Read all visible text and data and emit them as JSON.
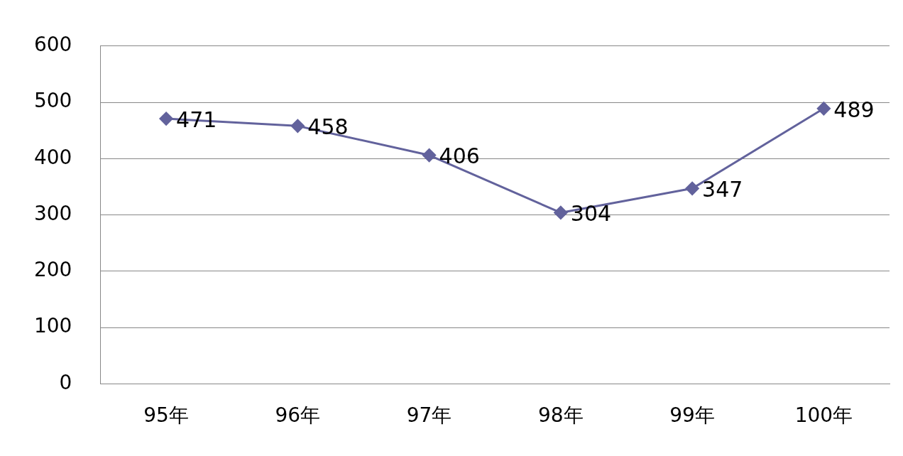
{
  "chart_data": {
    "type": "line",
    "categories": [
      "95年",
      "96年",
      "97年",
      "98年",
      "99年",
      "100年"
    ],
    "series": [
      {
        "color": "#62629c",
        "values": [
          471,
          458,
          406,
          304,
          347,
          489
        ]
      }
    ],
    "ylim": [
      0,
      600
    ],
    "yticks": [
      0,
      100,
      200,
      300,
      400,
      500,
      600
    ],
    "grid": "y",
    "legend": false,
    "marker": "diamond",
    "line_style": "solid",
    "data_labels": true
  }
}
